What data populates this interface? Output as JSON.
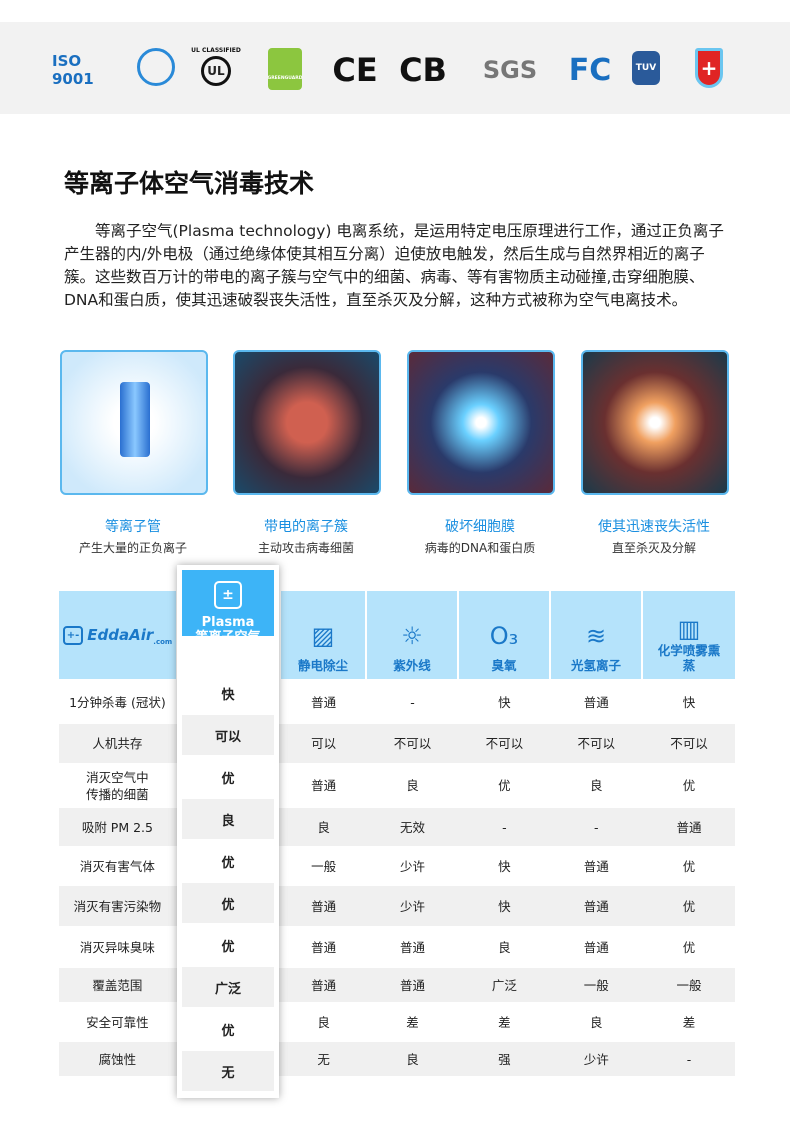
{
  "certifications": [
    "ISO 9001",
    "seal",
    "UL CLASSIFIED",
    "GREENGUARD",
    "CE",
    "CB",
    "SGS",
    "FC",
    "TUV",
    "shield"
  ],
  "title": "等离子体空气消毒技术",
  "intro": "等离子空气(Plasma technology) 电离系统，是运用特定电压原理进行工作，通过正负离子产生器的内/外电极（通过绝缘体使其相互分离）迫使放电触发，然后生成与自然界相近的离子簇。这些数百万计的带电的离子簇与空气中的细菌、病毒、等有害物质主动碰撞,击穿细胞膜、DNA和蛋白质，使其迅速破裂丧失活性，直至杀灭及分解，这种方式被称为空气电离技术。",
  "steps": [
    {
      "title": "等离子管",
      "sub": "产生大量的正负离子"
    },
    {
      "title": "带电的离子簇",
      "sub": "主动攻击病毒细菌"
    },
    {
      "title": "破坏细胞膜",
      "sub": "病毒的DNA和蛋白质"
    },
    {
      "title": "使其迅速丧失活性",
      "sub": "直至杀灭及分解"
    }
  ],
  "table": {
    "brand": "EddaAir",
    "brand_sub": ".com",
    "plasma": {
      "line1": "Plasma",
      "line2": "等离子空气",
      "values": [
        "快",
        "可以",
        "优",
        "良",
        "优",
        "优",
        "优",
        "广泛",
        "优",
        "无"
      ]
    },
    "columns": [
      {
        "label": "静电除尘",
        "icon": "electrostatic-filter-icon"
      },
      {
        "label": "紫外线",
        "icon": "uv-icon"
      },
      {
        "label": "臭氧",
        "icon": "ozone-icon"
      },
      {
        "label": "光氢离子",
        "icon": "heat-wave-icon"
      },
      {
        "label": "化学喷雾熏蒸",
        "icon": "chemical-spray-icon"
      }
    ],
    "rows": [
      {
        "label": "1分钟杀毒 (冠状)",
        "cells": [
          "普通",
          "-",
          "快",
          "普通",
          "快"
        ]
      },
      {
        "label": "人机共存",
        "cells": [
          "可以",
          "不可以",
          "不可以",
          "不可以",
          "不可以"
        ]
      },
      {
        "label": "消灭空气中\n传播的细菌",
        "cells": [
          "普通",
          "良",
          "优",
          "良",
          "优"
        ]
      },
      {
        "label": "吸附 PM 2.5",
        "cells": [
          "良",
          "无效",
          "-",
          "-",
          "普通"
        ]
      },
      {
        "label": "消灭有害气体",
        "cells": [
          "一般",
          "少许",
          "快",
          "普通",
          "优"
        ]
      },
      {
        "label": "消灭有害污染物",
        "cells": [
          "普通",
          "少许",
          "快",
          "普通",
          "优"
        ]
      },
      {
        "label": "消灭异味臭味",
        "cells": [
          "普通",
          "普通",
          "良",
          "普通",
          "优"
        ]
      },
      {
        "label": "覆盖范围",
        "cells": [
          "普通",
          "普通",
          "广泛",
          "一般",
          "一般"
        ]
      },
      {
        "label": "安全可靠性",
        "cells": [
          "良",
          "差",
          "差",
          "良",
          "差"
        ]
      },
      {
        "label": "腐蚀性",
        "cells": [
          "无",
          "良",
          "强",
          "少许",
          "-"
        ]
      }
    ]
  }
}
